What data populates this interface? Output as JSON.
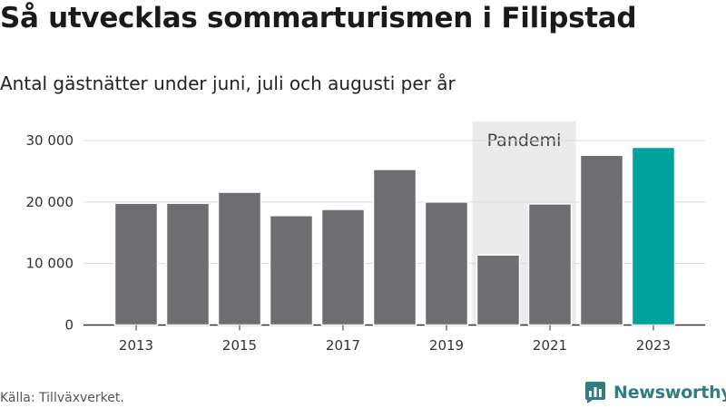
{
  "header": {
    "title": "Så utvecklas sommarturismen i Filipstad",
    "subtitle": "Antal gästnätter under juni, juli och augusti per år"
  },
  "footer": {
    "source": "Källa: Tillväxverket.",
    "brand": "Newsworthy"
  },
  "colors": {
    "bar": "#6e6d72",
    "highlight": "#00a39b",
    "shade": "#ebebeb",
    "grid": "#d9d9d9",
    "brand": "#2f7f80"
  },
  "chart_data": {
    "type": "bar",
    "categories": [
      "2013",
      "2014",
      "2015",
      "2016",
      "2017",
      "2018",
      "2019",
      "2020",
      "2021",
      "2022",
      "2023"
    ],
    "values": [
      19800,
      19800,
      21600,
      17800,
      18800,
      25300,
      20000,
      11400,
      19700,
      27600,
      28900
    ],
    "highlight_category": "2023",
    "xtick_labels": [
      "2013",
      "2015",
      "2017",
      "2019",
      "2021",
      "2023"
    ],
    "yticks": [
      0,
      10000,
      20000,
      30000
    ],
    "ytick_labels": [
      "0",
      "10 000",
      "20 000",
      "30 000"
    ],
    "ylim": [
      0,
      33000
    ],
    "grid": true,
    "annotation": {
      "label": "Pandemi",
      "from_category": "2020",
      "to_category": "2021"
    }
  }
}
